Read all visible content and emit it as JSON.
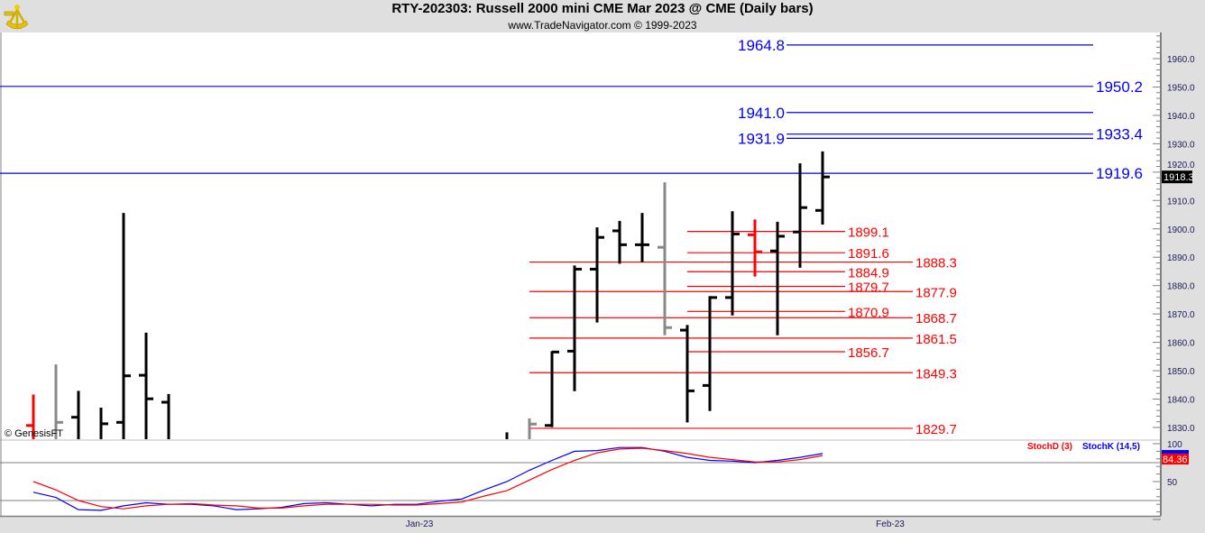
{
  "header": {
    "title": "RTY-202303:  Russell 2000 mini CME Mar 2023 @ CME  (Daily bars)",
    "subtitle": "www.TradeNavigator.com © 1999-2023",
    "logo": "sextant-logo",
    "watermark": "© GenesisFT"
  },
  "colors": {
    "up": "#000000",
    "down": "#ff0000",
    "neutral": "#888888",
    "resistance": "#0000ff",
    "support": "#ff0000",
    "stochK": "#0000ff",
    "stochD": "#ff0000"
  },
  "chart_data": [
    {
      "type": "ohlc-bar",
      "ylim": [
        1825.9,
        1969.3
      ],
      "yticks": [
        1830.0,
        1840.0,
        1850.0,
        1860.0,
        1870.0,
        1880.0,
        1890.0,
        1900.0,
        1910.0,
        1920.0,
        1930.0,
        1940.0,
        1950.0,
        1960.0
      ],
      "xticks": [
        {
          "label": "Jan-23",
          "bar": 17
        },
        {
          "label": "Feb-23",
          "bar": 38
        }
      ],
      "last_price": "1918.3",
      "bars": [
        {
          "h": 1841.6,
          "l": 1800,
          "o": 1830.7,
          "c": null,
          "color": "down"
        },
        {
          "h": 1852.2,
          "l": 1800,
          "o": null,
          "c": 1831.8,
          "color": "neutral"
        },
        {
          "h": 1842.9,
          "l": 1800,
          "o": 1833.6,
          "c": null,
          "color": "up"
        },
        {
          "h": 1837.0,
          "l": 1800,
          "o": null,
          "c": 1831.3,
          "color": "up"
        },
        {
          "h": 1905.6,
          "l": 1800,
          "o": 1831.8,
          "c": 1848.2,
          "color": "up"
        },
        {
          "h": 1863.4,
          "l": 1800,
          "o": 1848.4,
          "c": 1840.1,
          "color": "up"
        },
        {
          "h": 1841.8,
          "l": 1800,
          "o": 1838.9,
          "c": null,
          "color": "up"
        },
        null,
        null,
        null,
        null,
        null,
        null,
        null,
        null,
        null,
        null,
        null,
        null,
        null,
        null,
        {
          "h": 1828.3,
          "l": 1800,
          "o": null,
          "c": null,
          "color": "up"
        },
        {
          "h": 1833.2,
          "l": 1800,
          "o": null,
          "c": 1831.2,
          "color": "neutral"
        },
        {
          "h": 1856.9,
          "l": 1830.1,
          "o": 1830.7,
          "c": 1856.6,
          "color": "up"
        },
        {
          "h": 1887.1,
          "l": 1842.8,
          "o": 1856.9,
          "c": 1885.8,
          "color": "up"
        },
        {
          "h": 1900.5,
          "l": 1867.0,
          "o": 1885.8,
          "c": 1897.0,
          "color": "up"
        },
        {
          "h": 1902.8,
          "l": 1887.7,
          "o": 1899.3,
          "c": 1894.4,
          "color": "up"
        },
        {
          "h": 1905.6,
          "l": 1888.2,
          "o": 1894.4,
          "c": 1894.4,
          "color": "up"
        },
        {
          "h": 1916.4,
          "l": 1862.5,
          "o": 1893.5,
          "c": 1865.2,
          "color": "neutral"
        },
        {
          "h": 1866.1,
          "l": 1831.8,
          "o": 1864.3,
          "c": 1842.9,
          "color": "up"
        },
        {
          "h": 1876.3,
          "l": 1835.8,
          "o": 1844.8,
          "c": 1875.8,
          "color": "up"
        },
        {
          "h": 1906.2,
          "l": 1869.5,
          "o": 1875.8,
          "c": 1898.2,
          "color": "up"
        },
        {
          "h": 1903.3,
          "l": 1883.2,
          "o": 1897.9,
          "c": 1891.9,
          "color": "down"
        },
        {
          "h": 1902.5,
          "l": 1862.5,
          "o": 1892.2,
          "c": 1897.4,
          "color": "up"
        },
        {
          "h": 1923.1,
          "l": 1886.3,
          "o": 1898.9,
          "c": 1907.5,
          "color": "up"
        },
        {
          "h": 1927.3,
          "l": 1901.5,
          "o": 1906.5,
          "c": 1918.3,
          "color": "up"
        }
      ],
      "levels": [
        {
          "value": 1964.8,
          "label": "1964.8",
          "kind": "resistance",
          "span": "short",
          "label_side": "left"
        },
        {
          "value": 1950.2,
          "label": "1950.2",
          "kind": "resistance",
          "span": "full",
          "label_side": "right"
        },
        {
          "value": 1941.0,
          "label": "1941.0",
          "kind": "resistance",
          "span": "short",
          "label_side": "left"
        },
        {
          "value": 1933.4,
          "label": "1933.4",
          "kind": "resistance",
          "span": "short",
          "label_side": "right"
        },
        {
          "value": 1931.9,
          "label": "1931.9",
          "kind": "resistance",
          "span": "short",
          "label_side": "left"
        },
        {
          "value": 1919.6,
          "label": "1919.6",
          "kind": "resistance",
          "span": "full",
          "label_side": "right"
        },
        {
          "value": 1899.1,
          "label": "1899.1",
          "kind": "support",
          "span": "inner"
        },
        {
          "value": 1891.6,
          "label": "1891.6",
          "kind": "support",
          "span": "inner"
        },
        {
          "value": 1888.3,
          "label": "1888.3",
          "kind": "support",
          "span": "outer"
        },
        {
          "value": 1884.9,
          "label": "1884.9",
          "kind": "support",
          "span": "inner"
        },
        {
          "value": 1879.7,
          "label": "1879.7",
          "kind": "support",
          "span": "inner"
        },
        {
          "value": 1877.9,
          "label": "1877.9",
          "kind": "support",
          "span": "outer"
        },
        {
          "value": 1870.9,
          "label": "1870.9",
          "kind": "support",
          "span": "inner"
        },
        {
          "value": 1868.7,
          "label": "1868.7",
          "kind": "support",
          "span": "outer"
        },
        {
          "value": 1861.5,
          "label": "1861.5",
          "kind": "support",
          "span": "outer"
        },
        {
          "value": 1856.7,
          "label": "1856.7",
          "kind": "support",
          "span": "inner"
        },
        {
          "value": 1849.3,
          "label": "1849.3",
          "kind": "support",
          "span": "outer"
        },
        {
          "value": 1829.7,
          "label": "1829.7",
          "kind": "support",
          "span": "outer"
        }
      ]
    },
    {
      "type": "line",
      "ylim": [
        0,
        100
      ],
      "yticks": [
        {
          "value": 100,
          "label": "100"
        },
        {
          "value": 50,
          "label": "50"
        }
      ],
      "guides": [
        75,
        25
      ],
      "series": [
        {
          "name": "StochD (3)",
          "color": "#ff0000",
          "last": "84.36",
          "values": [
            50,
            39,
            25,
            17,
            14,
            18,
            20,
            21,
            19,
            18,
            15,
            15,
            18,
            20,
            20,
            20,
            19,
            19,
            21,
            23,
            31,
            38,
            52,
            66,
            78,
            88,
            93,
            94,
            91,
            87,
            82,
            79,
            76,
            76,
            79,
            84.36
          ]
        },
        {
          "name": "StochK (14,5)",
          "color": "#0000ff",
          "last": "",
          "values": [
            36,
            29,
            13,
            12,
            18,
            22,
            20,
            20,
            18,
            13,
            14,
            16,
            21,
            22,
            20,
            18,
            20,
            20,
            24,
            27,
            39,
            50,
            65,
            78,
            90,
            91,
            95,
            95,
            90,
            82,
            78,
            77,
            75,
            78,
            82,
            87
          ]
        }
      ]
    }
  ]
}
